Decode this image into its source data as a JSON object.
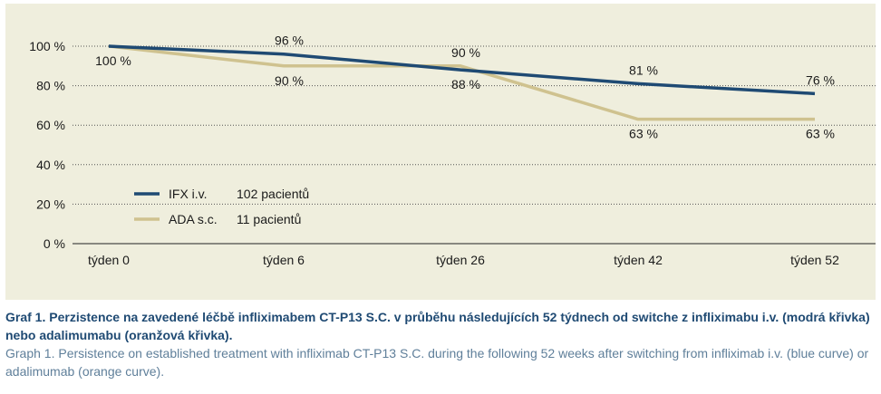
{
  "chart_data": {
    "type": "line",
    "categories": [
      "týden 0",
      "týden 6",
      "týden 26",
      "týden 42",
      "týden 52"
    ],
    "ylim": [
      0,
      100
    ],
    "yticks": [
      "0 %",
      "20 %",
      "40 %",
      "60 %",
      "80 %",
      "100 %"
    ],
    "ytick_values": [
      0,
      20,
      40,
      60,
      80,
      100
    ],
    "grid": "horizontal dotted",
    "legend_position": "lower-left",
    "series": [
      {
        "name": "IFX i.v.",
        "count_label": "102 pacientů",
        "color": "#1f4a73",
        "values": [
          100,
          96,
          88,
          81,
          76
        ],
        "labels": [
          "100 %",
          "96 %",
          "88 %",
          "81 %",
          "76 %"
        ],
        "label_side": [
          "below",
          "above",
          "below",
          "above",
          "above"
        ]
      },
      {
        "name": "ADA s.c.",
        "count_label": "11 pacientů",
        "color": "#cfc28f",
        "values": [
          100,
          90,
          90,
          63,
          63
        ],
        "labels": [
          "",
          "90 %",
          "90 %",
          "63 %",
          "63 %"
        ],
        "label_side": [
          "none",
          "below",
          "above",
          "below",
          "below"
        ]
      }
    ]
  },
  "caption": {
    "czech": "Graf 1. Perzistence na zavedené léčbě infliximabem CT-P13 S.C. v průběhu následujících 52 týdnech od switche z infliximabu i.v. (modrá křivka) nebo adalimumabu (oranžová křivka).",
    "english": "Graph 1. Persistence on established treatment with infliximab CT-P13 S.C. during the following 52 weeks after switching from infliximab i.v. (blue curve) or adalimumab (orange curve)."
  }
}
